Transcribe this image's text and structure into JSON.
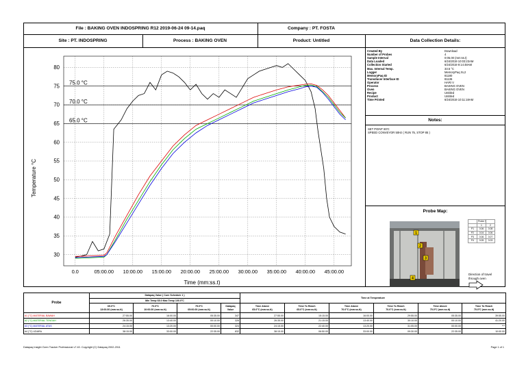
{
  "header": {
    "file": "File : BAKING OVEN INDOSPRING R12 2019-06-24 09-14.paq",
    "company": "Company : PT. FOSTA",
    "site": "Site : PT. INDOSPRING",
    "process": "Process : BAKING OVEN",
    "product": "Product: Untitled",
    "details_title": "Data Collection Details:"
  },
  "details": [
    {
      "label": "Created By",
      "value": "Download"
    },
    {
      "label": "Number of Probes",
      "value": "4"
    },
    {
      "label": "Sample Interval",
      "value": "0:05.00 (mm:ss.t)"
    },
    {
      "label": "Data Loaded",
      "value": "6/24/2019 10:03:23AM"
    },
    {
      "label": "Collection Started",
      "value": "6/24/2019 9:14:48AM"
    },
    {
      "label": "Max. Internal Temp.",
      "value": "33.5 °C"
    },
    {
      "label": "Logger",
      "value": "MemoryPaq XL2"
    },
    {
      "label": "MemoryPaq ID",
      "value": "81180"
    },
    {
      "label": "Transducer Interface ID",
      "value": "81136"
    },
    {
      "label": "Operator",
      "value": "HARI V"
    },
    {
      "label": "Process",
      "value": "BAKING OVEN"
    },
    {
      "label": "Oven",
      "value": "BAKING OVEN"
    },
    {
      "label": "Recipe",
      "value": "Untitled"
    },
    {
      "label": "Product",
      "value": "Untitled"
    },
    {
      "label": "Time Printed",
      "value": "6/24/2019 10:11:18AM"
    }
  ],
  "notes": {
    "title": "Notes:",
    "lines": [
      "SET POINT 80'C",
      "SPEED CONVEYOR 50Hz ( RUN 75, STOP 85 )"
    ]
  },
  "probe_map": {
    "title": "Probe Map:",
    "mini_table": {
      "header": [
        "",
        "Probe Value",
        ""
      ],
      "rows": [
        [
          "",
          "1",
          "2"
        ],
        [
          "P1",
          "0.06",
          "0.08"
        ],
        [
          "P2",
          "0.04",
          "0.06"
        ],
        [
          "P3",
          "0.06",
          "0.07"
        ],
        [
          "P4",
          "0.05",
          "0.03"
        ]
      ]
    },
    "direction_text": "Direction of travel through oven",
    "markers": [
      "1",
      "2",
      "3",
      "4"
    ]
  },
  "chart_data": {
    "type": "line",
    "ylabel": "Temperature °C",
    "xlabel": "Time (mm:ss.t)",
    "xlim": [
      -2,
      48
    ],
    "ylim": [
      27,
      83
    ],
    "x_ticks": [
      0,
      5,
      10,
      15,
      20,
      25,
      30,
      35,
      40,
      45
    ],
    "x_tick_labels": [
      "0.0",
      "05:00.00",
      "10:00.00",
      "15:00.00",
      "20:00.00",
      "25:00.00",
      "30:00.00",
      "35:00.00",
      "40:00.00",
      "45:00.00"
    ],
    "y_ticks": [
      30,
      35,
      40,
      45,
      50,
      55,
      60,
      65,
      70,
      75,
      80
    ],
    "y_tick_labels": [
      "30",
      "35",
      "40",
      "45",
      "50",
      "55",
      "60",
      "65",
      "70",
      "75",
      "80"
    ],
    "reference_lines": [
      {
        "label": "75.0 °C",
        "value": 75
      },
      {
        "label": "70.0 °C",
        "value": 70
      },
      {
        "label": "65.0 °C",
        "value": 65
      }
    ],
    "grid": true,
    "series": [
      {
        "color": "#000000",
        "x": [
          0,
          1,
          2,
          3,
          4,
          5,
          6,
          6.7,
          8,
          9,
          10,
          11,
          12,
          13,
          14,
          15,
          16,
          17,
          18,
          19,
          20,
          21,
          22,
          23,
          24,
          25,
          26,
          27,
          28,
          29,
          30,
          31,
          32,
          33,
          34,
          35,
          36,
          37,
          38,
          39,
          40,
          41,
          41.7,
          42.2,
          42.7,
          43.2,
          43.7,
          44.2,
          45,
          46,
          47
        ],
        "y": [
          29.3,
          29.6,
          30,
          33.5,
          31,
          31.5,
          35.5,
          63.5,
          66,
          69,
          71,
          72.5,
          73,
          76,
          74,
          78,
          79,
          78.5,
          77.5,
          76,
          74,
          75.5,
          73,
          71.5,
          73,
          72,
          74,
          73,
          72,
          74.5,
          77,
          78,
          79,
          79.5,
          80,
          80.5,
          80,
          81,
          79.5,
          78,
          76.5,
          73.5,
          69,
          63,
          58,
          53,
          45,
          40,
          37.5,
          36,
          35.5
        ]
      },
      {
        "color": "#dd0000",
        "x": [
          0,
          2,
          5,
          5.5,
          7,
          9,
          11,
          13,
          15,
          17,
          19,
          21,
          23,
          25,
          27,
          29,
          31,
          33,
          35,
          37,
          39,
          40,
          41,
          42,
          43,
          44,
          45,
          46,
          47
        ],
        "y": [
          29.5,
          29.6,
          29.8,
          30.5,
          35,
          40.5,
          46,
          51,
          55,
          59,
          62,
          64.5,
          66,
          67.5,
          69,
          70.5,
          72,
          73,
          74,
          74.8,
          75.3,
          75.5,
          75.6,
          75.2,
          74,
          72.5,
          70.5,
          68.5,
          66.5
        ]
      },
      {
        "color": "#00aa00",
        "x": [
          0,
          2,
          5,
          5.5,
          7,
          9,
          11,
          13,
          15,
          17,
          19,
          21,
          23,
          25,
          27,
          29,
          31,
          33,
          35,
          37,
          39,
          40,
          41,
          42,
          43,
          44,
          45,
          46,
          47
        ],
        "y": [
          29,
          29.1,
          29.3,
          30,
          34,
          39.5,
          44.5,
          49.5,
          54,
          58,
          61,
          63.5,
          65,
          66.5,
          68,
          69.5,
          71,
          72,
          73,
          74,
          74.8,
          75.2,
          75.3,
          74.9,
          73.5,
          72,
          70,
          68,
          66.5
        ]
      },
      {
        "color": "#0000dd",
        "x": [
          0,
          2,
          5,
          5.5,
          7,
          9,
          11,
          13,
          15,
          17,
          19,
          21,
          23,
          25,
          27,
          29,
          31,
          33,
          35,
          37,
          39,
          40,
          41,
          42,
          43,
          44,
          45,
          46,
          47
        ],
        "y": [
          29.2,
          29.3,
          29.5,
          30,
          33.5,
          38.5,
          43.5,
          48.5,
          53,
          57,
          60,
          62.5,
          64.5,
          66,
          67.5,
          69,
          70.5,
          71.5,
          72.5,
          73.5,
          74.3,
          74.8,
          75,
          74.7,
          73.3,
          71.5,
          69.5,
          67.5,
          66
        ]
      }
    ]
  },
  "results_table": {
    "probe_header": "Probe",
    "datapaq_header": "Datapaq Value ( Cure Schedule 1 )",
    "datapaq_subheader": "Min Temp 65.0 Max Temp 100.0°C",
    "time_header": "Time at Temperature",
    "columns": [
      "65.0°C\n13:00.00 (mm:ss.tt)",
      "70.0°C\n10:00.00 (mm:ss.tt)",
      "75.0°C\n05:00.00 (mm:ss.tt)",
      "Datapaq\nValue",
      "Time Above\n65.0°C (mm:ss.tt)",
      "Time To Reach\n65.0°C (mm:ss.tt)",
      "Time Above\n70.0°C (mm:ss.tt)",
      "Time To Reach\n70.0°C (mm:ss.tt)",
      "Time Above\n75.0°C (mm:ss.tt)",
      "Time To Reach\n75.0°C (mm:ss.tt)"
    ],
    "rows": [
      {
        "probe": "#1 (°C) MATERIAL BAWAH",
        "color": "#dd0000",
        "values": [
          "27:55.00",
          "16:00.00",
          "05:35.00",
          "347",
          "27:55.00",
          "15:15.00",
          "16:00.00",
          "29:55.00",
          "05:35.00",
          "39:55.00"
        ]
      },
      {
        "probe": "#2 (°C) MATERIAL TENGAH",
        "color": "#00aa00",
        "values": [
          "26:35.00",
          "13:40.00",
          "00:10.00",
          "326",
          "26:35.00",
          "21:15.00",
          "13:40.00",
          "30:10.00",
          "00:10.00",
          "41:20.00"
        ]
      },
      {
        "probe": "#3 (°C) MATERIAL ATAS",
        "color": "#0000dd",
        "values": [
          "24:15.00",
          "13:20.00",
          "00:00.00",
          "324",
          "24:15.00",
          "22:40.00",
          "13:20.00",
          "31:05.00",
          "00:00.00",
          "***"
        ]
      },
      {
        "probe": "#4 (°C) UDARA",
        "color": "#000000",
        "values": [
          "38:15.00",
          "33:00.00",
          "22:35.00",
          "832",
          "38:15.00",
          "06:50.00",
          "33:00.00",
          "09:30.00",
          "22:35.00",
          "10:00.00"
        ]
      }
    ]
  },
  "footer": {
    "left": "Datapaq Insight Oven Tracker Professional v7.40. Copyright (C) Datapaq 2002-2011",
    "right": "Page 1 of 1"
  }
}
